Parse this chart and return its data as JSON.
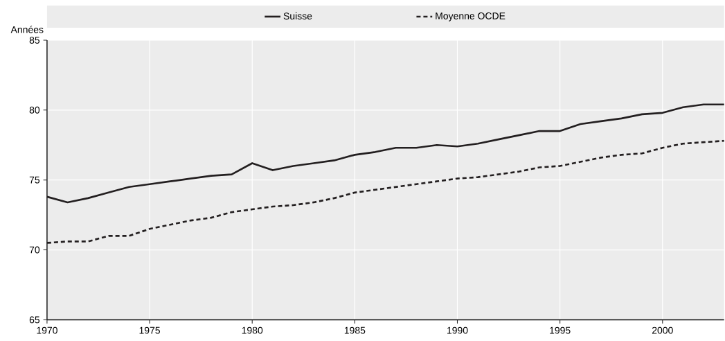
{
  "chart_data": {
    "type": "line",
    "ylabel": "Années",
    "x": [
      1970,
      1971,
      1972,
      1973,
      1974,
      1975,
      1976,
      1977,
      1978,
      1979,
      1980,
      1981,
      1982,
      1983,
      1984,
      1985,
      1986,
      1987,
      1988,
      1989,
      1990,
      1991,
      1992,
      1993,
      1994,
      1995,
      1996,
      1997,
      1998,
      1999,
      2000,
      2001,
      2002,
      2003
    ],
    "series": [
      {
        "name": "Suisse",
        "color": "#231f20",
        "line_style": "solid",
        "values": [
          73.8,
          73.4,
          73.7,
          74.1,
          74.5,
          74.7,
          74.9,
          75.1,
          75.3,
          75.4,
          76.2,
          75.7,
          76.0,
          76.2,
          76.4,
          76.8,
          77.0,
          77.3,
          77.3,
          77.5,
          77.4,
          77.6,
          77.9,
          78.2,
          78.5,
          78.5,
          79.0,
          79.2,
          79.4,
          79.7,
          79.8,
          80.2,
          80.4,
          80.4
        ]
      },
      {
        "name": "Moyenne OCDE",
        "color": "#231f20",
        "line_style": "dashed",
        "values": [
          70.5,
          70.6,
          70.6,
          71.0,
          71.0,
          71.5,
          71.8,
          72.1,
          72.3,
          72.7,
          72.9,
          73.1,
          73.2,
          73.4,
          73.7,
          74.1,
          74.3,
          74.5,
          74.7,
          74.9,
          75.1,
          75.2,
          75.4,
          75.6,
          75.9,
          76.0,
          76.3,
          76.6,
          76.8,
          76.9,
          77.3,
          77.6,
          77.7,
          77.8
        ]
      }
    ],
    "xlim": [
      1970,
      2003
    ],
    "ylim": [
      65,
      85
    ],
    "xticks": [
      1970,
      1975,
      1980,
      1985,
      1990,
      1995,
      2000
    ],
    "yticks": [
      65,
      70,
      75,
      80,
      85
    ],
    "grid": true,
    "legend": "top"
  }
}
